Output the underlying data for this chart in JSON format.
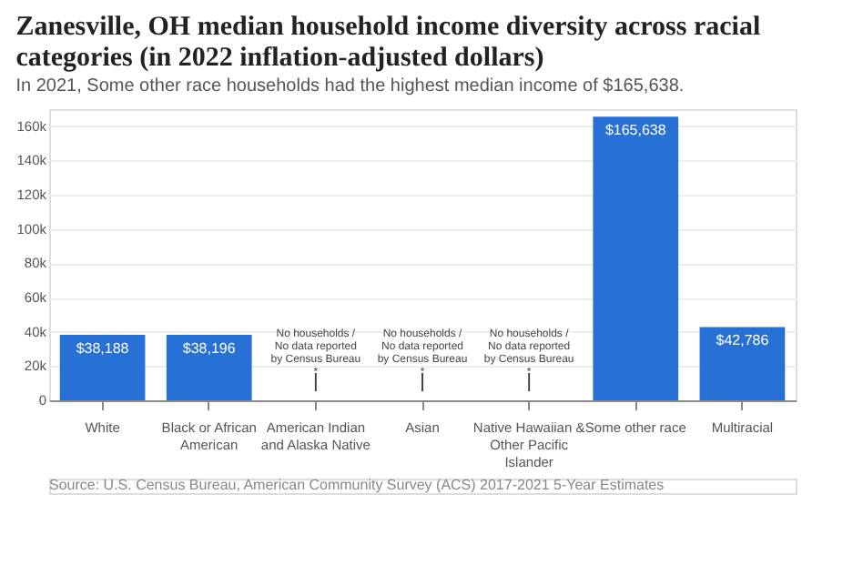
{
  "chart_data": {
    "type": "bar",
    "title": "Zanesville, OH median household income diversity across racial categories (in 2022 inflation-adjusted dollars)",
    "subtitle": "In 2021, Some other race households had the highest median income of $165,638.",
    "categories": [
      "White",
      "Black or African American",
      "American Indian and Alaska Native",
      "Asian",
      "Native Hawaiian & Other Pacific Islander",
      "Some other race",
      "Multiracial"
    ],
    "values": [
      38188,
      38196,
      null,
      null,
      null,
      165638,
      42786
    ],
    "value_labels": [
      "$38,188",
      "$38,196",
      null,
      null,
      null,
      "$165,638",
      "$42,786"
    ],
    "color": "#2771d6",
    "ylim": [
      0,
      170000
    ],
    "yticks": [
      0,
      {
        "value": 20000,
        "label": "20k"
      },
      {
        "value": 40000,
        "label": "40k"
      },
      {
        "value": 60000,
        "label": "60k"
      },
      {
        "value": 80000,
        "label": "80k"
      },
      {
        "value": 100000,
        "label": "100k"
      },
      {
        "value": 120000,
        "label": "120k"
      },
      {
        "value": 140000,
        "label": "140k"
      },
      {
        "value": 160000,
        "label": "160k"
      }
    ],
    "grid": "y",
    "annotations": [
      "No households / No data reported by Census Bureau *",
      "No households / No data reported by Census Bureau *",
      "No households / No data reported by Census Bureau *",
      "Source: U.S. Census Bureau, American Community Survey (ACS) 2017-2021 5-Year Estimates"
    ]
  }
}
